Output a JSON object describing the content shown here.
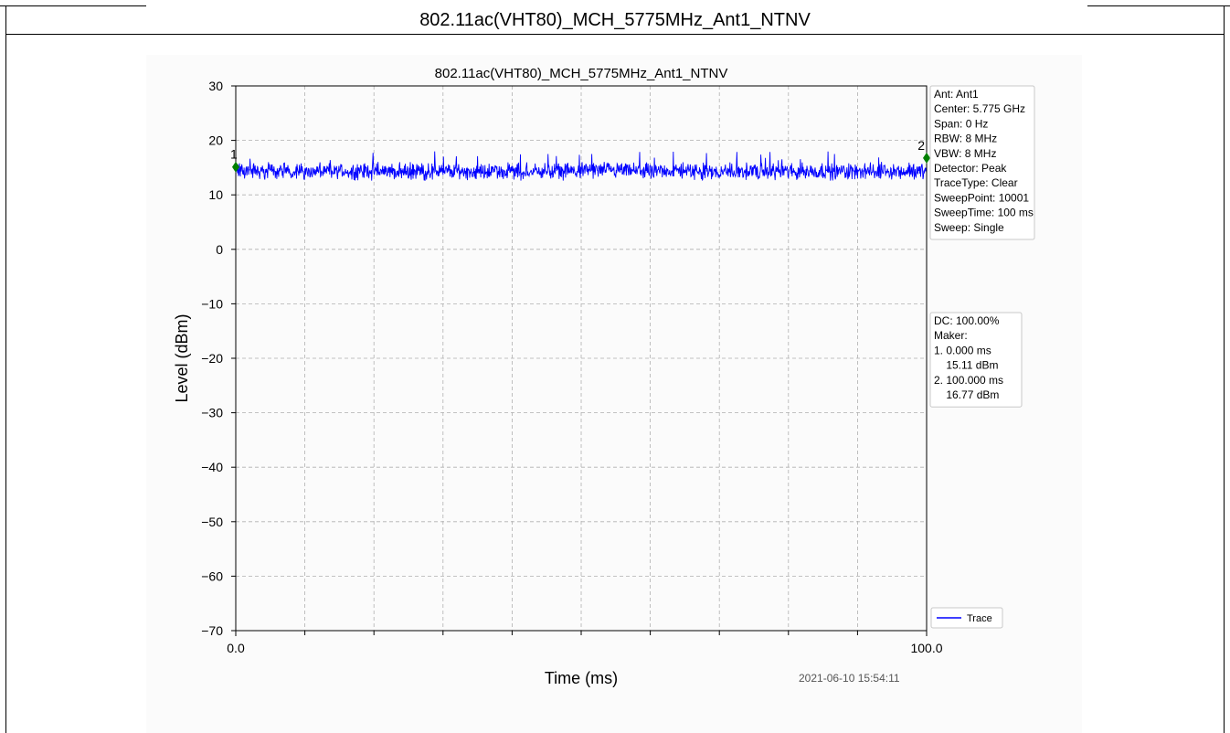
{
  "page": {
    "header_title": "802.11ac(VHT80)_MCH_5775MHz_Ant1_NTNV"
  },
  "chart_data": {
    "type": "line",
    "title": "802.11ac(VHT80)_MCH_5775MHz_Ant1_NTNV",
    "xlabel": "Time (ms)",
    "ylabel": "Level (dBm)",
    "xlim": [
      0,
      100
    ],
    "ylim": [
      -70,
      30
    ],
    "yticks": [
      30,
      20,
      10,
      0,
      -10,
      -20,
      -30,
      -40,
      -50,
      -60,
      -70
    ],
    "ytick_labels": [
      "30",
      "20",
      "10",
      "0",
      "−10",
      "−20",
      "−30",
      "−40",
      "−50",
      "−60",
      "−70"
    ],
    "xticks_major": [
      0,
      100
    ],
    "xtick_labels": [
      "0.0",
      "100.0"
    ],
    "xticks_minor": [
      10,
      20,
      30,
      40,
      50,
      60,
      70,
      80,
      90
    ],
    "grid": true,
    "series": [
      {
        "name": "Trace",
        "color": "#0000ff",
        "description_values": {
          "mean": 14.8,
          "min": 12.5,
          "max": 18.0
        },
        "points": 10001
      }
    ],
    "markers": [
      {
        "label": "1",
        "x": 0.0,
        "y": 15.11,
        "color": "#008000"
      },
      {
        "label": "2",
        "x": 100.0,
        "y": 16.77,
        "color": "#008000"
      }
    ],
    "legend": {
      "placement": "bottom-right",
      "entries": [
        "Trace"
      ]
    },
    "info_box": [
      "Ant: Ant1",
      "Center: 5.775 GHz",
      "Span: 0 Hz",
      "RBW: 8 MHz",
      "VBW: 8 MHz",
      "Detector: Peak",
      "TraceType: Clear",
      "SweepPoint: 10001",
      "SweepTime: 100 ms",
      "Sweep: Single"
    ],
    "marker_box": [
      "DC: 100.00%",
      "Maker:",
      "1. 0.000 ms",
      "    15.11 dBm",
      "2. 100.000 ms",
      "    16.77 dBm"
    ],
    "timestamp": "2021-06-10 15:54:11"
  }
}
